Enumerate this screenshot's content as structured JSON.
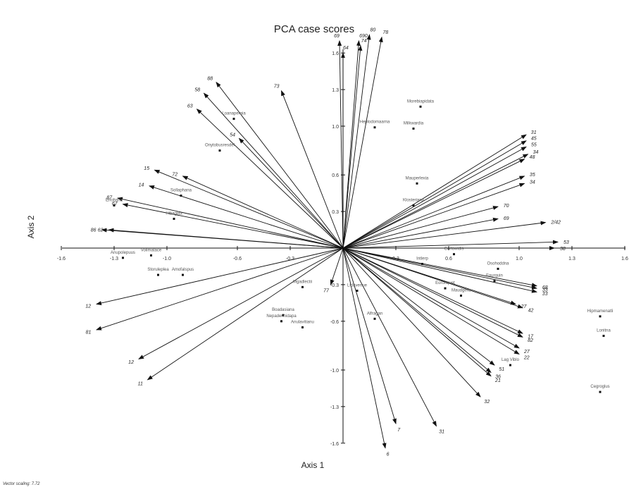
{
  "chart_data": {
    "type": "scatter",
    "title": "PCA case scores",
    "xlabel": "Axis 1",
    "ylabel": "Axis 2",
    "xlim": [
      -1.6,
      1.6
    ],
    "ylim": [
      -1.6,
      1.6
    ],
    "x_ticks": [
      "-1.6",
      "-1.3",
      "-1.0",
      "-0.6",
      "-0.3",
      "0.3",
      "0.6",
      "1.0",
      "1.3",
      "1.6"
    ],
    "x_tick_values": [
      -1.6,
      -1.3,
      -1.0,
      -0.6,
      -0.3,
      0.3,
      0.6,
      1.0,
      1.3,
      1.6
    ],
    "y_ticks": [
      "1.6",
      "1.3",
      "1.0",
      "0.6",
      "0.3",
      "-0.3",
      "-0.6",
      "-1.0",
      "-1.3",
      "-1.6"
    ],
    "y_tick_values": [
      1.6,
      1.3,
      1.0,
      0.6,
      0.3,
      -0.3,
      -0.6,
      -1.0,
      -1.3,
      -1.6
    ],
    "grid": false,
    "footnote": "Vector scaling: 7.72",
    "points": [
      {
        "label": "Eriobana",
        "x": -1.3,
        "y": 0.35
      },
      {
        "label": "Sollaphana",
        "x": -0.92,
        "y": 0.43
      },
      {
        "label": "Morebiapidata",
        "x": 0.44,
        "y": 1.16
      },
      {
        "label": "Mauperlexia",
        "x": 0.42,
        "y": 0.53
      },
      {
        "label": "Heplodomaarna",
        "x": 0.18,
        "y": 0.99
      },
      {
        "label": "Milkwardia",
        "x": 0.4,
        "y": 0.98
      },
      {
        "label": "Klosteriana",
        "x": 0.4,
        "y": 0.35
      },
      {
        "label": "Loanaperaia",
        "x": -0.62,
        "y": 1.06
      },
      {
        "label": "Onytobusresdel",
        "x": -0.7,
        "y": 0.8
      },
      {
        "label": "Hibaglita",
        "x": -0.96,
        "y": 0.24
      },
      {
        "label": "Anupolepuus",
        "x": -1.25,
        "y": -0.08
      },
      {
        "label": "Vollmatace",
        "x": -1.09,
        "y": -0.06
      },
      {
        "label": "Storuleplea",
        "x": -1.05,
        "y": -0.22
      },
      {
        "label": "Amofalspus",
        "x": -0.91,
        "y": -0.22
      },
      {
        "label": "Boadasiana",
        "x": -0.34,
        "y": -0.55
      },
      {
        "label": "Nepadennidapa",
        "x": -0.35,
        "y": -0.6
      },
      {
        "label": "Anulavitianu",
        "x": -0.23,
        "y": -0.65
      },
      {
        "label": "Mgadlectii",
        "x": -0.23,
        "y": -0.32
      },
      {
        "label": "Alfragan",
        "x": 0.18,
        "y": -0.58
      },
      {
        "label": "Lidavertue",
        "x": 0.08,
        "y": -0.35
      },
      {
        "label": "Intlerp",
        "x": 0.45,
        "y": -0.13
      },
      {
        "label": "Corlowidis",
        "x": 0.63,
        "y": -0.05
      },
      {
        "label": "Osohoddna",
        "x": 0.88,
        "y": -0.17
      },
      {
        "label": "Fourquin",
        "x": 0.86,
        "y": -0.27
      },
      {
        "label": "Eoronquet",
        "x": 0.58,
        "y": -0.33
      },
      {
        "label": "Maudgera",
        "x": 0.67,
        "y": -0.39
      },
      {
        "label": "Hipmamenatli",
        "x": 1.46,
        "y": -0.56
      },
      {
        "label": "Lonitna",
        "x": 1.48,
        "y": -0.72
      },
      {
        "label": "Cegroglus",
        "x": 1.46,
        "y": -1.18
      },
      {
        "label": "Lag Viblo",
        "x": 0.95,
        "y": -0.96
      }
    ],
    "vectors": [
      {
        "label": "80",
        "x": 0.15,
        "y": 1.75
      },
      {
        "label": "78",
        "x": 0.22,
        "y": 1.73
      },
      {
        "label": "69",
        "x": -0.02,
        "y": 1.7
      },
      {
        "label": "690",
        "x": 0.09,
        "y": 1.7
      },
      {
        "label": "74",
        "x": 0.1,
        "y": 1.66
      },
      {
        "label": "64",
        "x": 0.0,
        "y": 1.6
      },
      {
        "label": "88",
        "x": -0.72,
        "y": 1.36
      },
      {
        "label": "58",
        "x": -0.79,
        "y": 1.27
      },
      {
        "label": "73",
        "x": -0.35,
        "y": 1.29
      },
      {
        "label": "63",
        "x": -0.83,
        "y": 1.14
      },
      {
        "label": "54",
        "x": -0.59,
        "y": 0.9
      },
      {
        "label": "15",
        "x": -1.07,
        "y": 0.64
      },
      {
        "label": "72",
        "x": -0.91,
        "y": 0.59
      },
      {
        "label": "14",
        "x": -1.1,
        "y": 0.51
      },
      {
        "label": "87",
        "x": -1.28,
        "y": 0.41
      },
      {
        "label": "67",
        "x": -1.25,
        "y": 0.36
      },
      {
        "label": "86",
        "x": -1.37,
        "y": 0.15
      },
      {
        "label": "62",
        "x": -1.33,
        "y": 0.15
      },
      {
        "label": "12",
        "x": -1.4,
        "y": -0.46
      },
      {
        "label": "81",
        "x": -1.4,
        "y": -0.67
      },
      {
        "label": "12",
        "x": -1.16,
        "y": -0.91
      },
      {
        "label": "11",
        "x": -1.11,
        "y": -1.08
      },
      {
        "label": "77",
        "x": -0.07,
        "y": -0.3
      },
      {
        "label": "6",
        "x": 0.24,
        "y": -1.64
      },
      {
        "label": "7",
        "x": 0.3,
        "y": -1.44
      },
      {
        "label": "31",
        "x": 0.53,
        "y": -1.46
      },
      {
        "label": "32",
        "x": 0.78,
        "y": -1.22
      },
      {
        "label": "21",
        "x": 0.84,
        "y": -1.05
      },
      {
        "label": "36",
        "x": 0.84,
        "y": -1.02
      },
      {
        "label": "51",
        "x": 0.86,
        "y": -0.96
      },
      {
        "label": "22",
        "x": 1.0,
        "y": -0.87
      },
      {
        "label": "27",
        "x": 1.0,
        "y": -0.82
      },
      {
        "label": "82",
        "x": 1.02,
        "y": -0.73
      },
      {
        "label": "17",
        "x": 1.02,
        "y": -0.7
      },
      {
        "label": "42",
        "x": 1.02,
        "y": -0.49
      },
      {
        "label": "27",
        "x": 0.98,
        "y": -0.46
      },
      {
        "label": "33",
        "x": 1.1,
        "y": -0.36
      },
      {
        "label": "68",
        "x": 1.1,
        "y": -0.31
      },
      {
        "label": "33",
        "x": 1.1,
        "y": -0.33
      },
      {
        "label": "38",
        "x": 1.2,
        "y": 0.0
      },
      {
        "label": "53",
        "x": 1.22,
        "y": 0.05
      },
      {
        "label": "2/42",
        "x": 1.15,
        "y": 0.21
      },
      {
        "label": "69",
        "x": 0.88,
        "y": 0.24
      },
      {
        "label": "70",
        "x": 0.88,
        "y": 0.34
      },
      {
        "label": "34",
        "x": 1.03,
        "y": 0.53
      },
      {
        "label": "35",
        "x": 1.03,
        "y": 0.59
      },
      {
        "label": "48",
        "x": 1.03,
        "y": 0.73
      },
      {
        "label": "34",
        "x": 1.05,
        "y": 0.77
      },
      {
        "label": "55",
        "x": 1.04,
        "y": 0.83
      },
      {
        "label": "45",
        "x": 1.04,
        "y": 0.88
      },
      {
        "label": "31",
        "x": 1.04,
        "y": 0.93
      }
    ]
  }
}
